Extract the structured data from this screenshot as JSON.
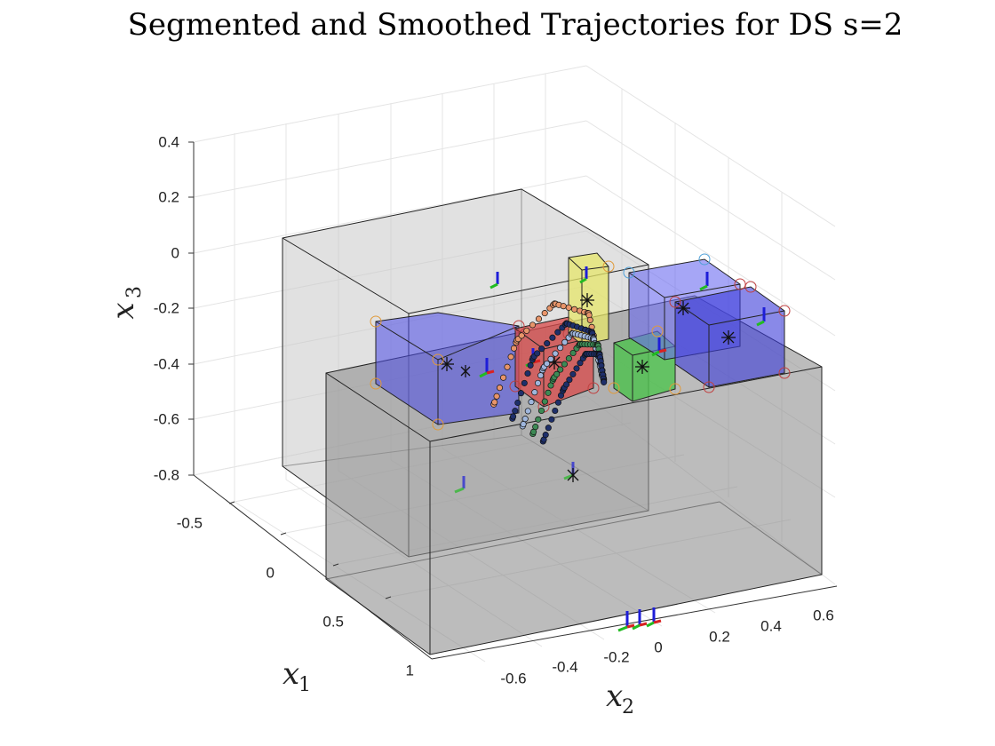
{
  "title": "Segmented and Smoothed Trajectories for DS s=2",
  "chart_data": {
    "type": "scatter",
    "projection": "3d",
    "title": "Segmented and Smoothed Trajectories for DS s=2",
    "axes": {
      "x1": {
        "label_base": "x",
        "label_sub": "1",
        "ticks": [
          "-0.5",
          "0",
          "0.5",
          "1"
        ],
        "range": [
          -0.75,
          1.05
        ]
      },
      "x2": {
        "label_base": "x",
        "label_sub": "2",
        "ticks": [
          "-0.6",
          "-0.4",
          "-0.2",
          "0",
          "0.2",
          "0.4",
          "0.6"
        ],
        "range": [
          -0.75,
          0.68
        ]
      },
      "x3": {
        "label_base": "x",
        "label_sub": "3",
        "ticks": [
          "0.4",
          "0.2",
          "0",
          "-0.2",
          "-0.4",
          "-0.6",
          "-0.8"
        ],
        "range": [
          -0.85,
          0.42
        ]
      }
    },
    "grid": true,
    "legend": "none",
    "colors": {
      "table_box": "#9a9a9a",
      "back_box": "#c8c8c8",
      "blue_box": "#4a4ae8",
      "red_box": "#d94a4a",
      "green_box": "#3ec43e",
      "yellow_box": "#e6e66a",
      "traj_orange": "#e8956a",
      "traj_navy": "#1e2f6a",
      "traj_green": "#3d8a55",
      "traj_lightblue": "#9fb6dc"
    },
    "series": [
      {
        "color": "#e8956a",
        "points": [
          [
            -0.25,
            -0.47,
            -0.23
          ],
          [
            -0.22,
            -0.4,
            0.0
          ],
          [
            -0.15,
            -0.3,
            0.14
          ],
          [
            -0.07,
            -0.22,
            0.12
          ],
          [
            -0.03,
            -0.2,
            -0.06
          ]
        ]
      },
      {
        "color": "#1e2f6a",
        "points": [
          [
            -0.2,
            -0.43,
            -0.27
          ],
          [
            -0.17,
            -0.37,
            -0.05
          ],
          [
            -0.11,
            -0.28,
            0.08
          ],
          [
            -0.05,
            -0.22,
            0.06
          ],
          [
            -0.02,
            -0.2,
            -0.08
          ]
        ]
      },
      {
        "color": "#9fb6dc",
        "points": [
          [
            -0.17,
            -0.41,
            -0.29
          ],
          [
            -0.14,
            -0.35,
            -0.08
          ],
          [
            -0.09,
            -0.27,
            0.05
          ],
          [
            -0.04,
            -0.22,
            0.04
          ],
          [
            -0.02,
            -0.2,
            -0.09
          ]
        ]
      },
      {
        "color": "#3d8a55",
        "points": [
          [
            -0.14,
            -0.39,
            -0.31
          ],
          [
            -0.11,
            -0.33,
            -0.11
          ],
          [
            -0.06,
            -0.26,
            0.02
          ],
          [
            -0.03,
            -0.21,
            0.02
          ],
          [
            -0.01,
            -0.2,
            -0.1
          ]
        ]
      },
      {
        "color": "#1e2f6a",
        "points": [
          [
            -0.11,
            -0.37,
            -0.33
          ],
          [
            -0.08,
            -0.31,
            -0.14
          ],
          [
            -0.04,
            -0.25,
            -0.01
          ],
          [
            -0.02,
            -0.21,
            -0.01
          ],
          [
            -0.01,
            -0.2,
            -0.11
          ]
        ]
      }
    ]
  }
}
